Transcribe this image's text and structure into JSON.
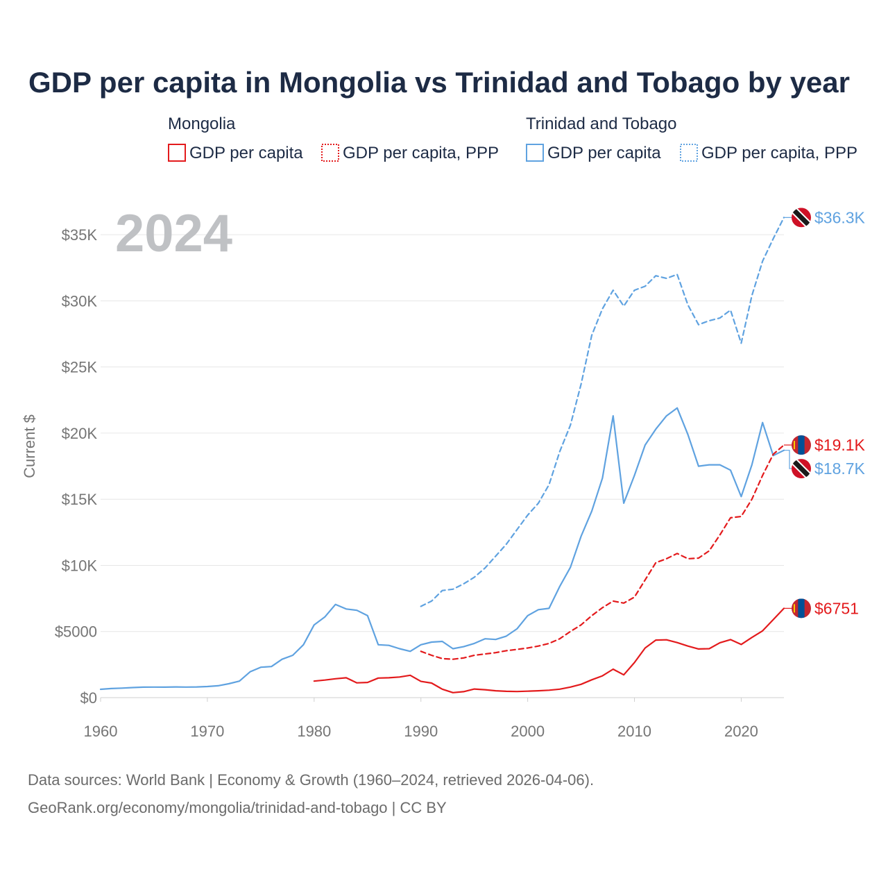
{
  "title": "GDP per capita in Mongolia vs Trinidad and Tobago by year",
  "year_badge": "2024",
  "legend": {
    "groups": [
      {
        "name": "Mongolia",
        "color": "#e31a1c",
        "items": [
          {
            "label": "GDP per capita",
            "style": "solid"
          },
          {
            "label": "GDP per capita, PPP",
            "style": "dotted"
          }
        ]
      },
      {
        "name": "Trinidad and Tobago",
        "color": "#5fa2e0",
        "items": [
          {
            "label": "GDP per capita",
            "style": "solid"
          },
          {
            "label": "GDP per capita, PPP",
            "style": "dotted"
          }
        ]
      }
    ]
  },
  "source_line1": "Data sources: World Bank | Economy & Growth (1960–2024, retrieved 2026-04-06).",
  "source_line2": "GeoRank.org/economy/mongolia/trinidad-and-tobago | CC BY",
  "colors": {
    "mongolia": "#e31a1c",
    "trinidad": "#5fa2e0"
  },
  "chart_data": {
    "type": "line",
    "title": "GDP per capita in Mongolia vs Trinidad and Tobago by year",
    "xlabel": "",
    "ylabel": "Current $",
    "xlim": [
      1960,
      2024
    ],
    "ylim": [
      0,
      37000
    ],
    "x_ticks": [
      1960,
      1970,
      1980,
      1990,
      2000,
      2010,
      2020
    ],
    "x_tick_labels": [
      "1960",
      "1970",
      "1980",
      "1990",
      "2000",
      "2010",
      "2020"
    ],
    "y_ticks": [
      0,
      5000,
      10000,
      15000,
      20000,
      25000,
      30000,
      35000
    ],
    "y_tick_labels": [
      "$0",
      "$5000",
      "$10K",
      "$15K",
      "$20K",
      "$25K",
      "$30K",
      "$35K"
    ],
    "grid": true,
    "series": [
      {
        "name": "Trinidad and Tobago GDP per capita",
        "country": "trinidad",
        "style": "solid",
        "color": "#5fa2e0",
        "end_label": "$18.7K",
        "points": [
          [
            1960,
            630
          ],
          [
            1961,
            690
          ],
          [
            1962,
            720
          ],
          [
            1963,
            760
          ],
          [
            1964,
            790
          ],
          [
            1965,
            800
          ],
          [
            1966,
            790
          ],
          [
            1967,
            810
          ],
          [
            1968,
            800
          ],
          [
            1969,
            810
          ],
          [
            1970,
            840
          ],
          [
            1971,
            900
          ],
          [
            1972,
            1050
          ],
          [
            1973,
            1250
          ],
          [
            1974,
            1950
          ],
          [
            1975,
            2300
          ],
          [
            1976,
            2350
          ],
          [
            1977,
            2900
          ],
          [
            1978,
            3200
          ],
          [
            1979,
            4000
          ],
          [
            1980,
            5500
          ],
          [
            1981,
            6100
          ],
          [
            1982,
            7050
          ],
          [
            1983,
            6700
          ],
          [
            1984,
            6600
          ],
          [
            1985,
            6200
          ],
          [
            1986,
            4000
          ],
          [
            1987,
            3950
          ],
          [
            1988,
            3700
          ],
          [
            1989,
            3500
          ],
          [
            1990,
            4000
          ],
          [
            1991,
            4200
          ],
          [
            1992,
            4250
          ],
          [
            1993,
            3700
          ],
          [
            1994,
            3850
          ],
          [
            1995,
            4100
          ],
          [
            1996,
            4450
          ],
          [
            1997,
            4400
          ],
          [
            1998,
            4650
          ],
          [
            1999,
            5200
          ],
          [
            2000,
            6200
          ],
          [
            2001,
            6650
          ],
          [
            2002,
            6750
          ],
          [
            2003,
            8400
          ],
          [
            2004,
            9850
          ],
          [
            2005,
            12200
          ],
          [
            2006,
            14100
          ],
          [
            2007,
            16600
          ],
          [
            2008,
            21300
          ],
          [
            2009,
            14700
          ],
          [
            2010,
            16800
          ],
          [
            2011,
            19100
          ],
          [
            2012,
            20300
          ],
          [
            2013,
            21300
          ],
          [
            2014,
            21900
          ],
          [
            2015,
            19900
          ],
          [
            2016,
            17500
          ],
          [
            2017,
            17600
          ],
          [
            2018,
            17600
          ],
          [
            2019,
            17200
          ],
          [
            2020,
            15200
          ],
          [
            2021,
            17600
          ],
          [
            2022,
            20800
          ],
          [
            2023,
            18300
          ],
          [
            2024,
            18700
          ]
        ]
      },
      {
        "name": "Trinidad and Tobago GDP per capita, PPP",
        "country": "trinidad",
        "style": "dashed",
        "color": "#5fa2e0",
        "end_label": "$36.3K",
        "points": [
          [
            1990,
            6900
          ],
          [
            1991,
            7300
          ],
          [
            1992,
            8100
          ],
          [
            1993,
            8200
          ],
          [
            1994,
            8600
          ],
          [
            1995,
            9100
          ],
          [
            1996,
            9800
          ],
          [
            1997,
            10700
          ],
          [
            1998,
            11600
          ],
          [
            1999,
            12700
          ],
          [
            2000,
            13800
          ],
          [
            2001,
            14700
          ],
          [
            2002,
            16100
          ],
          [
            2003,
            18600
          ],
          [
            2004,
            20600
          ],
          [
            2005,
            23700
          ],
          [
            2006,
            27400
          ],
          [
            2007,
            29400
          ],
          [
            2008,
            30800
          ],
          [
            2009,
            29600
          ],
          [
            2010,
            30800
          ],
          [
            2011,
            31100
          ],
          [
            2012,
            31900
          ],
          [
            2013,
            31700
          ],
          [
            2014,
            32000
          ],
          [
            2015,
            29700
          ],
          [
            2016,
            28200
          ],
          [
            2017,
            28500
          ],
          [
            2018,
            28700
          ],
          [
            2019,
            29300
          ],
          [
            2020,
            26800
          ],
          [
            2021,
            30400
          ],
          [
            2022,
            33000
          ],
          [
            2023,
            34700
          ],
          [
            2024,
            36300
          ]
        ]
      },
      {
        "name": "Mongolia GDP per capita",
        "country": "mongolia",
        "style": "solid",
        "color": "#e31a1c",
        "end_label": "$6751",
        "points": [
          [
            1980,
            1250
          ],
          [
            1981,
            1330
          ],
          [
            1982,
            1430
          ],
          [
            1983,
            1500
          ],
          [
            1984,
            1120
          ],
          [
            1985,
            1150
          ],
          [
            1986,
            1480
          ],
          [
            1987,
            1500
          ],
          [
            1988,
            1560
          ],
          [
            1989,
            1690
          ],
          [
            1990,
            1230
          ],
          [
            1991,
            1100
          ],
          [
            1992,
            640
          ],
          [
            1993,
            380
          ],
          [
            1994,
            450
          ],
          [
            1995,
            650
          ],
          [
            1996,
            600
          ],
          [
            1997,
            520
          ],
          [
            1998,
            480
          ],
          [
            1999,
            460
          ],
          [
            2000,
            490
          ],
          [
            2001,
            520
          ],
          [
            2002,
            560
          ],
          [
            2003,
            640
          ],
          [
            2004,
            800
          ],
          [
            2005,
            1010
          ],
          [
            2006,
            1350
          ],
          [
            2007,
            1650
          ],
          [
            2008,
            2150
          ],
          [
            2009,
            1720
          ],
          [
            2010,
            2650
          ],
          [
            2011,
            3750
          ],
          [
            2012,
            4350
          ],
          [
            2013,
            4370
          ],
          [
            2014,
            4160
          ],
          [
            2015,
            3900
          ],
          [
            2016,
            3680
          ],
          [
            2017,
            3700
          ],
          [
            2018,
            4150
          ],
          [
            2019,
            4390
          ],
          [
            2020,
            4020
          ],
          [
            2021,
            4550
          ],
          [
            2022,
            5050
          ],
          [
            2023,
            5900
          ],
          [
            2024,
            6751
          ]
        ]
      },
      {
        "name": "Mongolia GDP per capita, PPP",
        "country": "mongolia",
        "style": "dashed",
        "color": "#e31a1c",
        "end_label": "$19.1K",
        "points": [
          [
            1990,
            3500
          ],
          [
            1991,
            3200
          ],
          [
            1992,
            2950
          ],
          [
            1993,
            2900
          ],
          [
            1994,
            3000
          ],
          [
            1995,
            3200
          ],
          [
            1996,
            3300
          ],
          [
            1997,
            3400
          ],
          [
            1998,
            3550
          ],
          [
            1999,
            3650
          ],
          [
            2000,
            3750
          ],
          [
            2001,
            3900
          ],
          [
            2002,
            4100
          ],
          [
            2003,
            4450
          ],
          [
            2004,
            5000
          ],
          [
            2005,
            5500
          ],
          [
            2006,
            6200
          ],
          [
            2007,
            6800
          ],
          [
            2008,
            7300
          ],
          [
            2009,
            7150
          ],
          [
            2010,
            7600
          ],
          [
            2011,
            8900
          ],
          [
            2012,
            10200
          ],
          [
            2013,
            10500
          ],
          [
            2014,
            10900
          ],
          [
            2015,
            10500
          ],
          [
            2016,
            10550
          ],
          [
            2017,
            11100
          ],
          [
            2018,
            12300
          ],
          [
            2019,
            13600
          ],
          [
            2020,
            13700
          ],
          [
            2021,
            15000
          ],
          [
            2022,
            16800
          ],
          [
            2023,
            18400
          ],
          [
            2024,
            19100
          ]
        ]
      }
    ]
  }
}
